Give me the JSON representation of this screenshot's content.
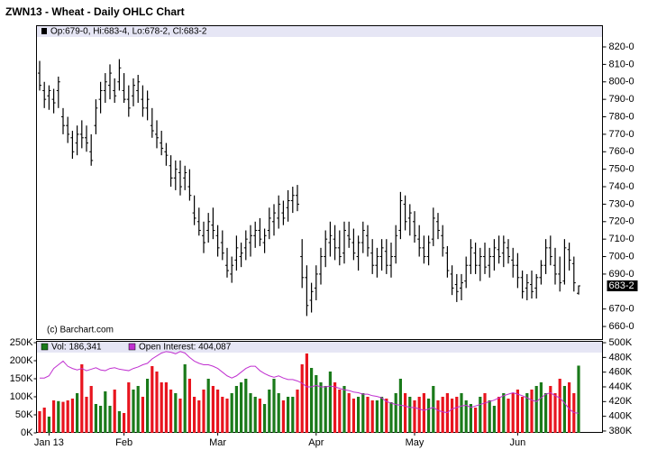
{
  "chart_data": [
    {
      "type": "ohlc",
      "title": "ZWN13 - Wheat - Daily OHLC Chart",
      "legend": "Op:679-0, Hi:683-4, Lo:678-2, Cl:683-2",
      "watermark": "(c) Barchart.com",
      "last_label": "683-2",
      "color": "#000000",
      "categories": [
        null,
        null,
        "Jan 13",
        null,
        null,
        null,
        null,
        null,
        null,
        null,
        null,
        null,
        null,
        null,
        null,
        null,
        null,
        null,
        "Feb",
        null,
        null,
        null,
        null,
        null,
        null,
        null,
        null,
        null,
        null,
        null,
        null,
        null,
        null,
        null,
        null,
        null,
        null,
        null,
        "Mar",
        null,
        null,
        null,
        null,
        null,
        null,
        null,
        null,
        null,
        null,
        null,
        null,
        null,
        null,
        null,
        null,
        null,
        null,
        null,
        null,
        "Apr",
        null,
        null,
        null,
        null,
        null,
        null,
        null,
        null,
        null,
        null,
        null,
        null,
        null,
        null,
        null,
        null,
        null,
        null,
        null,
        null,
        "May",
        null,
        null,
        null,
        null,
        null,
        null,
        null,
        null,
        null,
        null,
        null,
        null,
        null,
        null,
        null,
        null,
        null,
        null,
        null,
        null,
        null,
        "Jun",
        null,
        null,
        null,
        null,
        null,
        null,
        null,
        null,
        null,
        null,
        null,
        null,
        null
      ],
      "ohlc": [
        [
          805,
          812,
          795,
          798
        ],
        [
          795,
          800,
          785,
          790
        ],
        [
          792,
          798,
          784,
          795
        ],
        [
          790,
          796,
          782,
          788
        ],
        [
          795,
          803,
          785,
          800
        ],
        [
          780,
          785,
          770,
          775
        ],
        [
          775,
          780,
          765,
          770
        ],
        [
          768,
          772,
          756,
          760
        ],
        [
          765,
          775,
          758,
          770
        ],
        [
          770,
          778,
          762,
          768
        ],
        [
          768,
          775,
          760,
          765
        ],
        [
          760,
          770,
          752,
          755
        ],
        [
          775,
          790,
          770,
          785
        ],
        [
          790,
          800,
          782,
          795
        ],
        [
          795,
          805,
          788,
          800
        ],
        [
          798,
          810,
          790,
          805
        ],
        [
          795,
          802,
          788,
          792
        ],
        [
          800,
          813,
          795,
          808
        ],
        [
          795,
          805,
          788,
          790
        ],
        [
          790,
          798,
          780,
          785
        ],
        [
          792,
          802,
          786,
          798
        ],
        [
          795,
          804,
          788,
          800
        ],
        [
          790,
          798,
          780,
          785
        ],
        [
          785,
          795,
          778,
          790
        ],
        [
          775,
          785,
          768,
          772
        ],
        [
          770,
          778,
          762,
          768
        ],
        [
          765,
          772,
          758,
          762
        ],
        [
          760,
          765,
          752,
          758
        ],
        [
          752,
          758,
          740,
          745
        ],
        [
          745,
          755,
          738,
          750
        ],
        [
          748,
          755,
          735,
          740
        ],
        [
          745,
          752,
          738,
          748
        ],
        [
          740,
          750,
          732,
          735
        ],
        [
          725,
          735,
          718,
          722
        ],
        [
          720,
          728,
          712,
          715
        ],
        [
          712,
          720,
          702,
          708
        ],
        [
          715,
          725,
          708,
          720
        ],
        [
          718,
          728,
          710,
          715
        ],
        [
          712,
          718,
          700,
          705
        ],
        [
          708,
          715,
          698,
          702
        ],
        [
          695,
          705,
          688,
          692
        ],
        [
          690,
          700,
          685,
          695
        ],
        [
          698,
          712,
          692,
          705
        ],
        [
          700,
          708,
          694,
          702
        ],
        [
          705,
          715,
          698,
          710
        ],
        [
          708,
          718,
          700,
          712
        ],
        [
          712,
          720,
          705,
          715
        ],
        [
          715,
          722,
          706,
          710
        ],
        [
          708,
          716,
          702,
          712
        ],
        [
          715,
          728,
          710,
          722
        ],
        [
          720,
          730,
          712,
          725
        ],
        [
          722,
          735,
          716,
          730
        ],
        [
          725,
          732,
          718,
          722
        ],
        [
          728,
          738,
          720,
          732
        ],
        [
          732,
          740,
          725,
          735
        ],
        [
          735,
          741,
          726,
          730
        ],
        [
          700,
          710,
          682,
          688
        ],
        [
          688,
          695,
          666,
          672
        ],
        [
          675,
          685,
          668,
          680
        ],
        [
          682,
          695,
          675,
          690
        ],
        [
          690,
          705,
          684,
          700
        ],
        [
          700,
          715,
          694,
          710
        ],
        [
          708,
          720,
          700,
          712
        ],
        [
          710,
          718,
          698,
          705
        ],
        [
          705,
          715,
          695,
          700
        ],
        [
          702,
          720,
          696,
          715
        ],
        [
          712,
          720,
          705,
          710
        ],
        [
          708,
          716,
          698,
          702
        ],
        [
          700,
          712,
          692,
          708
        ],
        [
          708,
          720,
          702,
          715
        ],
        [
          712,
          718,
          700,
          705
        ],
        [
          702,
          710,
          690,
          695
        ],
        [
          695,
          705,
          688,
          700
        ],
        [
          700,
          710,
          692,
          705
        ],
        [
          703,
          710,
          690,
          695
        ],
        [
          695,
          708,
          688,
          700
        ],
        [
          700,
          718,
          696,
          712
        ],
        [
          715,
          737,
          710,
          732
        ],
        [
          730,
          735,
          715,
          720
        ],
        [
          722,
          730,
          712,
          725
        ],
        [
          720,
          726,
          708,
          712
        ],
        [
          710,
          718,
          700,
          705
        ],
        [
          705,
          712,
          696,
          700
        ],
        [
          700,
          712,
          695,
          708
        ],
        [
          710,
          728,
          706,
          722
        ],
        [
          720,
          725,
          710,
          715
        ],
        [
          712,
          718,
          700,
          705
        ],
        [
          702,
          706,
          688,
          692
        ],
        [
          690,
          695,
          678,
          682
        ],
        [
          684,
          690,
          674,
          680
        ],
        [
          682,
          690,
          675,
          685
        ],
        [
          686,
          700,
          682,
          695
        ],
        [
          695,
          710,
          690,
          705
        ],
        [
          702,
          708,
          690,
          695
        ],
        [
          695,
          705,
          686,
          700
        ],
        [
          700,
          708,
          690,
          694
        ],
        [
          695,
          705,
          688,
          700
        ],
        [
          700,
          710,
          692,
          705
        ],
        [
          704,
          712,
          696,
          700
        ],
        [
          702,
          712,
          694,
          708
        ],
        [
          705,
          710,
          696,
          700
        ],
        [
          698,
          705,
          688,
          695
        ],
        [
          695,
          702,
          682,
          688
        ],
        [
          688,
          692,
          676,
          680
        ],
        [
          682,
          690,
          675,
          685
        ],
        [
          684,
          692,
          676,
          680
        ],
        [
          682,
          690,
          676,
          688
        ],
        [
          688,
          698,
          684,
          695
        ],
        [
          695,
          710,
          690,
          705
        ],
        [
          705,
          712,
          695,
          700
        ],
        [
          695,
          705,
          684,
          690
        ],
        [
          690,
          700,
          680,
          685
        ],
        [
          686,
          710,
          684,
          705
        ],
        [
          704,
          708,
          692,
          698
        ],
        [
          696,
          700,
          680,
          685
        ],
        [
          679,
          683.5,
          678.25,
          683.25
        ]
      ],
      "ylim": [
        652.8,
        826.2
      ],
      "yticks": [
        {
          "value": 660,
          "label": "660-0"
        },
        {
          "value": 670,
          "label": "670-0"
        },
        {
          "value": 690,
          "label": "690-0"
        },
        {
          "value": 700,
          "label": "700-0"
        },
        {
          "value": 710,
          "label": "710-0"
        },
        {
          "value": 720,
          "label": "720-0"
        },
        {
          "value": 730,
          "label": "730-0"
        },
        {
          "value": 740,
          "label": "740-0"
        },
        {
          "value": 750,
          "label": "750-0"
        },
        {
          "value": 760,
          "label": "760-0"
        },
        {
          "value": 770,
          "label": "770-0"
        },
        {
          "value": 780,
          "label": "780-0"
        },
        {
          "value": 790,
          "label": "790-0"
        },
        {
          "value": 800,
          "label": "800-0"
        },
        {
          "value": 810,
          "label": "810-0"
        },
        {
          "value": 820,
          "label": "820-0"
        }
      ]
    },
    {
      "type": "volume",
      "up_color": "#1a7a1a",
      "down_color": "#e8141e",
      "series": [
        {
          "name": "Vol: 186,341",
          "color": "#1a7a1a",
          "values": [
            60000,
            70000,
            45000,
            90000,
            88000,
            86000,
            90000,
            95000,
            110000,
            190000,
            100000,
            130000,
            80000,
            75000,
            115000,
            75000,
            120000,
            60000,
            55000,
            140000,
            120000,
            130000,
            100000,
            150000,
            185000,
            170000,
            140000,
            140000,
            120000,
            110000,
            95000,
            190000,
            150000,
            100000,
            90000,
            120000,
            150000,
            130000,
            120000,
            100000,
            95000,
            110000,
            130000,
            140000,
            150000,
            110000,
            100000,
            95000,
            80000,
            120000,
            150000,
            110000,
            90000,
            100000,
            100000,
            120000,
            190000,
            220000,
            180000,
            160000,
            140000,
            130000,
            170000,
            140000,
            120000,
            130000,
            110000,
            95000,
            100000,
            110000,
            100000,
            90000,
            90000,
            100000,
            95000,
            85000,
            110000,
            150000,
            110000,
            100000,
            90000,
            100000,
            110000,
            95000,
            130000,
            90000,
            100000,
            110000,
            95000,
            100000,
            110000,
            90000,
            80000,
            70000,
            100000,
            110000,
            90000,
            75000,
            100000,
            110000,
            95000,
            110000,
            120000,
            100000,
            110000,
            120000,
            130000,
            140000,
            110000,
            130000,
            110000,
            150000,
            130000,
            140000,
            110000,
            186341
          ]
        },
        {
          "name": "Open Interest: 404,087",
          "color": "#c030d0",
          "axis": "y2",
          "values": [
            452000,
            452000,
            455000,
            465000,
            470000,
            475000,
            468000,
            465000,
            463000,
            465000,
            462000,
            464000,
            466000,
            463000,
            462000,
            465000,
            466000,
            464000,
            463000,
            462000,
            465000,
            467000,
            470000,
            472000,
            478000,
            482000,
            486000,
            488000,
            487000,
            485000,
            488000,
            486000,
            480000,
            475000,
            472000,
            470000,
            470000,
            468000,
            465000,
            460000,
            455000,
            452000,
            455000,
            460000,
            465000,
            468000,
            468000,
            462000,
            458000,
            455000,
            453000,
            455000,
            452000,
            450000,
            450000,
            448000,
            445000,
            440000,
            440000,
            442000,
            440000,
            440000,
            441000,
            440000,
            438000,
            436000,
            435000,
            433000,
            432000,
            430000,
            430000,
            428000,
            427000,
            425000,
            420000,
            418000,
            416000,
            415000,
            414000,
            412000,
            412000,
            410000,
            408000,
            410000,
            412000,
            408000,
            406000,
            405000,
            410000,
            412000,
            414000,
            415000,
            412000,
            414000,
            416000,
            418000,
            420000,
            422000,
            425000,
            428000,
            430000,
            432000,
            430000,
            428000,
            425000,
            422000,
            420000,
            425000,
            430000,
            432000,
            428000,
            425000,
            418000,
            410000,
            405000,
            404087
          ]
        }
      ],
      "ylim": [
        0,
        255000
      ],
      "yticks": [
        {
          "value": 0,
          "label": "0K"
        },
        {
          "value": 50000,
          "label": "50K"
        },
        {
          "value": 100000,
          "label": "100K"
        },
        {
          "value": 150000,
          "label": "150K"
        },
        {
          "value": 200000,
          "label": "200K"
        },
        {
          "value": 250000,
          "label": "250K"
        }
      ],
      "y2lim": [
        377500,
        502500
      ],
      "y2ticks": [
        {
          "value": 380000,
          "label": "380K"
        },
        {
          "value": 400000,
          "label": "400K"
        },
        {
          "value": 420000,
          "label": "420K"
        },
        {
          "value": 440000,
          "label": "440K"
        },
        {
          "value": 460000,
          "label": "460K"
        },
        {
          "value": 480000,
          "label": "480K"
        },
        {
          "value": 500000,
          "label": "500K"
        }
      ]
    }
  ]
}
